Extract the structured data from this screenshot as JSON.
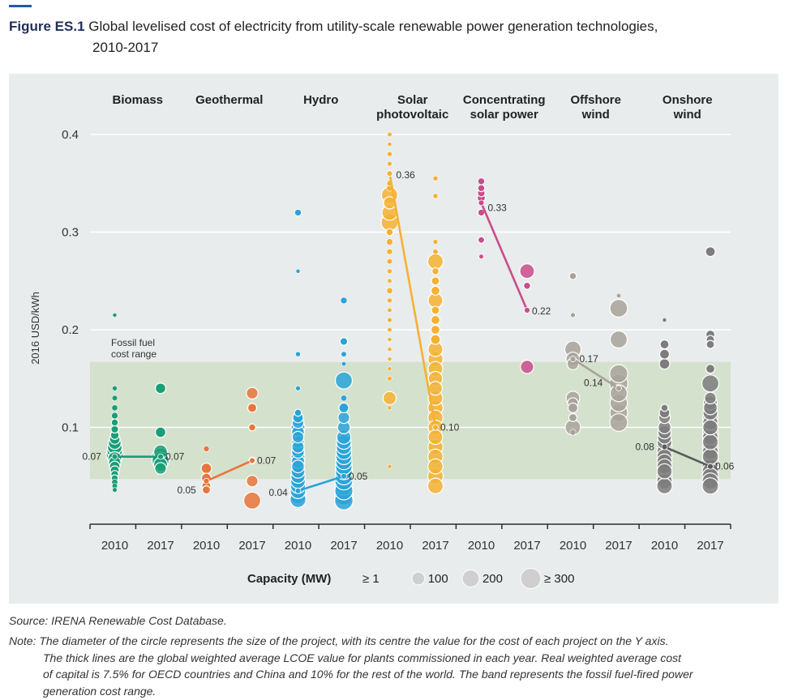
{
  "figure": {
    "label": "Figure ES.1",
    "title_line1": "Global levelised cost of electricity from utility-scale renewable power generation technologies,",
    "title_line2": "2010-2017"
  },
  "source": "Source: IRENA Renewable Cost Database.",
  "note": {
    "label": "Note:",
    "line1": "The diameter of the circle represents the size of the project, with its centre the value for the cost of each project on the Y axis.",
    "line2": "The thick lines are the global weighted average LCOE value for plants commissioned in each year. Real weighted average cost",
    "line3": "of capital is 7.5% for OECD countries and China and 10% for the rest of the world. The band represents the fossil fuel-fired power",
    "line4": "generation cost range."
  },
  "chart_data": {
    "type": "scatter",
    "ylabel": "2016 USD/kWh",
    "ylim": [
      0,
      0.43
    ],
    "yticks": [
      {
        "v": 0.1,
        "label": "0.1"
      },
      {
        "v": 0.2,
        "label": "0.2"
      },
      {
        "v": 0.3,
        "label": "0.3"
      },
      {
        "v": 0.4,
        "label": "0.4"
      }
    ],
    "fossil_band": {
      "low": 0.047,
      "high": 0.167,
      "label_line1": "Fossil fuel",
      "label_line2": "cost range"
    },
    "year_labels": [
      "2010",
      "2017"
    ],
    "legend": {
      "title": "Capacity (MW)",
      "items": [
        {
          "label": "≥ 1",
          "mw": 1
        },
        {
          "label": "100",
          "mw": 100
        },
        {
          "label": "200",
          "mw": 200
        },
        {
          "label": "≥ 300",
          "mw": 300
        }
      ]
    },
    "technologies": [
      {
        "name": "Biomass",
        "name2": "",
        "color": "#1a9e77",
        "avg": [
          0.07,
          0.07
        ],
        "labels": [
          "0.07",
          "0.07"
        ],
        "p2010": [
          [
            0.215,
            3
          ],
          [
            0.14,
            6
          ],
          [
            0.13,
            9
          ],
          [
            0.12,
            12
          ],
          [
            0.112,
            15
          ],
          [
            0.105,
            20
          ],
          [
            0.098,
            25
          ],
          [
            0.092,
            35
          ],
          [
            0.088,
            60
          ],
          [
            0.084,
            100
          ],
          [
            0.08,
            140
          ],
          [
            0.076,
            160
          ],
          [
            0.072,
            200
          ],
          [
            0.068,
            120
          ],
          [
            0.064,
            90
          ],
          [
            0.06,
            60
          ],
          [
            0.056,
            40
          ],
          [
            0.052,
            25
          ],
          [
            0.048,
            18
          ],
          [
            0.044,
            12
          ],
          [
            0.04,
            8
          ],
          [
            0.036,
            5
          ]
        ],
        "p2017": [
          [
            0.14,
            60
          ],
          [
            0.095,
            60
          ],
          [
            0.075,
            120
          ],
          [
            0.07,
            200
          ],
          [
            0.066,
            200
          ],
          [
            0.062,
            120
          ],
          [
            0.058,
            80
          ]
        ]
      },
      {
        "name": "Geothermal",
        "name2": "",
        "color": "#e8763b",
        "avg": [
          0.045,
          0.066
        ],
        "labels": [
          "0.05",
          "0.07"
        ],
        "p2010": [
          [
            0.078,
            10
          ],
          [
            0.058,
            60
          ],
          [
            0.048,
            50
          ],
          [
            0.04,
            40
          ],
          [
            0.036,
            30
          ]
        ],
        "p2017": [
          [
            0.135,
            80
          ],
          [
            0.12,
            40
          ],
          [
            0.1,
            20
          ],
          [
            0.066,
            20
          ],
          [
            0.045,
            80
          ],
          [
            0.025,
            200
          ]
        ]
      },
      {
        "name": "Hydro",
        "name2": "",
        "color": "#2aa3d8",
        "avg": [
          0.035,
          0.05
        ],
        "labels": [
          "0.04",
          "0.05"
        ],
        "p2010": [
          [
            0.32,
            15
          ],
          [
            0.26,
            3
          ],
          [
            0.175,
            6
          ],
          [
            0.14,
            5
          ],
          [
            0.115,
            20
          ],
          [
            0.11,
            60
          ],
          [
            0.105,
            80
          ],
          [
            0.1,
            120
          ],
          [
            0.095,
            100
          ],
          [
            0.09,
            80
          ],
          [
            0.085,
            90
          ],
          [
            0.08,
            90
          ],
          [
            0.075,
            100
          ],
          [
            0.07,
            120
          ],
          [
            0.065,
            110
          ],
          [
            0.06,
            100
          ],
          [
            0.055,
            120
          ],
          [
            0.05,
            130
          ],
          [
            0.045,
            140
          ],
          [
            0.04,
            150
          ],
          [
            0.035,
            160
          ],
          [
            0.03,
            170
          ],
          [
            0.026,
            170
          ]
        ],
        "p2017": [
          [
            0.23,
            15
          ],
          [
            0.188,
            25
          ],
          [
            0.175,
            8
          ],
          [
            0.165,
            4
          ],
          [
            0.148,
            200
          ],
          [
            0.13,
            12
          ],
          [
            0.12,
            50
          ],
          [
            0.11,
            80
          ],
          [
            0.1,
            100
          ],
          [
            0.09,
            130
          ],
          [
            0.085,
            140
          ],
          [
            0.08,
            150
          ],
          [
            0.075,
            160
          ],
          [
            0.07,
            170
          ],
          [
            0.065,
            180
          ],
          [
            0.06,
            190
          ],
          [
            0.055,
            200
          ],
          [
            0.05,
            210
          ],
          [
            0.045,
            220
          ],
          [
            0.04,
            230
          ],
          [
            0.035,
            230
          ],
          [
            0.03,
            240
          ],
          [
            0.025,
            240
          ]
        ]
      },
      {
        "name": "Solar",
        "name2": "photovoltaic",
        "color": "#f5b133",
        "avg": [
          0.36,
          0.1
        ],
        "labels": [
          "0.36",
          "0.10"
        ],
        "p2010": [
          [
            0.4,
            4
          ],
          [
            0.39,
            3
          ],
          [
            0.38,
            6
          ],
          [
            0.37,
            5
          ],
          [
            0.36,
            8
          ],
          [
            0.35,
            10
          ],
          [
            0.345,
            14
          ],
          [
            0.338,
            180
          ],
          [
            0.33,
            90
          ],
          [
            0.32,
            160
          ],
          [
            0.31,
            200
          ],
          [
            0.3,
            20
          ],
          [
            0.29,
            15
          ],
          [
            0.28,
            10
          ],
          [
            0.27,
            8
          ],
          [
            0.26,
            6
          ],
          [
            0.25,
            4
          ],
          [
            0.24,
            12
          ],
          [
            0.23,
            6
          ],
          [
            0.22,
            4
          ],
          [
            0.21,
            5
          ],
          [
            0.2,
            4
          ],
          [
            0.19,
            3
          ],
          [
            0.18,
            3
          ],
          [
            0.17,
            3
          ],
          [
            0.16,
            3
          ],
          [
            0.15,
            5
          ],
          [
            0.13,
            110
          ],
          [
            0.12,
            3
          ],
          [
            0.06,
            3
          ]
        ],
        "p2017": [
          [
            0.355,
            6
          ],
          [
            0.337,
            6
          ],
          [
            0.29,
            6
          ],
          [
            0.28,
            8
          ],
          [
            0.27,
            160
          ],
          [
            0.26,
            20
          ],
          [
            0.25,
            30
          ],
          [
            0.24,
            40
          ],
          [
            0.23,
            140
          ],
          [
            0.22,
            30
          ],
          [
            0.21,
            40
          ],
          [
            0.2,
            40
          ],
          [
            0.19,
            50
          ],
          [
            0.18,
            140
          ],
          [
            0.17,
            150
          ],
          [
            0.16,
            140
          ],
          [
            0.15,
            130
          ],
          [
            0.14,
            120
          ],
          [
            0.13,
            140
          ],
          [
            0.12,
            150
          ],
          [
            0.11,
            150
          ],
          [
            0.1,
            140
          ],
          [
            0.09,
            140
          ],
          [
            0.08,
            150
          ],
          [
            0.07,
            150
          ],
          [
            0.06,
            150
          ],
          [
            0.05,
            160
          ],
          [
            0.04,
            160
          ]
        ]
      },
      {
        "name": "Concentrating",
        "name2": "solar power",
        "color": "#c94c8c",
        "avg": [
          0.33,
          0.22
        ],
        "labels": [
          "0.33",
          "0.22"
        ],
        "p2010": [
          [
            0.352,
            15
          ],
          [
            0.345,
            20
          ],
          [
            0.34,
            25
          ],
          [
            0.335,
            30
          ],
          [
            0.32,
            18
          ],
          [
            0.292,
            16
          ],
          [
            0.275,
            4
          ]
        ],
        "p2017": [
          [
            0.26,
            140
          ],
          [
            0.245,
            20
          ],
          [
            0.22,
            8
          ],
          [
            0.162,
            110
          ]
        ]
      },
      {
        "name": "Offshore",
        "name2": "wind",
        "color": "#a8a39a",
        "avg": [
          0.17,
          0.14
        ],
        "labels": [
          "0.17",
          "0.14"
        ],
        "p2010": [
          [
            0.255,
            20
          ],
          [
            0.215,
            5
          ],
          [
            0.18,
            180
          ],
          [
            0.17,
            120
          ],
          [
            0.165,
            80
          ],
          [
            0.13,
            120
          ],
          [
            0.125,
            60
          ],
          [
            0.12,
            50
          ],
          [
            0.11,
            30
          ],
          [
            0.095,
            12
          ],
          [
            0.1,
            160
          ]
        ],
        "p2017": [
          [
            0.235,
            4
          ],
          [
            0.222,
            220
          ],
          [
            0.19,
            200
          ],
          [
            0.155,
            230
          ],
          [
            0.145,
            240
          ],
          [
            0.135,
            200
          ],
          [
            0.125,
            210
          ],
          [
            0.115,
            220
          ],
          [
            0.105,
            220
          ]
        ]
      },
      {
        "name": "Onshore",
        "name2": "wind",
        "color": "#7d7d7d",
        "avg": [
          0.08,
          0.06
        ],
        "labels": [
          "0.08",
          "0.06"
        ],
        "p2010": [
          [
            0.21,
            3
          ],
          [
            0.185,
            40
          ],
          [
            0.175,
            50
          ],
          [
            0.165,
            60
          ],
          [
            0.12,
            20
          ],
          [
            0.115,
            60
          ],
          [
            0.11,
            80
          ],
          [
            0.1,
            100
          ],
          [
            0.095,
            110
          ],
          [
            0.09,
            120
          ],
          [
            0.085,
            140
          ],
          [
            0.08,
            150
          ],
          [
            0.075,
            150
          ],
          [
            0.07,
            150
          ],
          [
            0.065,
            150
          ],
          [
            0.06,
            150
          ],
          [
            0.055,
            150
          ],
          [
            0.05,
            160
          ],
          [
            0.045,
            160
          ],
          [
            0.04,
            160
          ]
        ],
        "p2017": [
          [
            0.28,
            50
          ],
          [
            0.195,
            40
          ],
          [
            0.19,
            30
          ],
          [
            0.185,
            30
          ],
          [
            0.16,
            40
          ],
          [
            0.145,
            200
          ],
          [
            0.13,
            80
          ],
          [
            0.125,
            120
          ],
          [
            0.12,
            120
          ],
          [
            0.115,
            140
          ],
          [
            0.11,
            150
          ],
          [
            0.105,
            150
          ],
          [
            0.1,
            150
          ],
          [
            0.095,
            160
          ],
          [
            0.09,
            160
          ],
          [
            0.085,
            160
          ],
          [
            0.08,
            170
          ],
          [
            0.075,
            170
          ],
          [
            0.07,
            170
          ],
          [
            0.065,
            180
          ],
          [
            0.06,
            180
          ],
          [
            0.055,
            180
          ],
          [
            0.05,
            180
          ],
          [
            0.045,
            180
          ],
          [
            0.04,
            180
          ]
        ]
      }
    ]
  }
}
